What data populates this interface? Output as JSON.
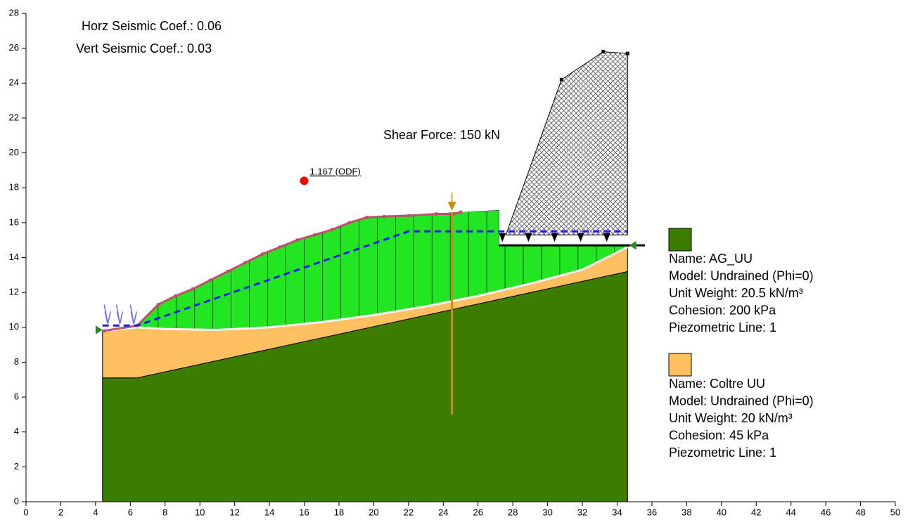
{
  "chart_data": {
    "type": "slope",
    "annotations": [
      "Horz Seismic Coef.: 0.06",
      "Vert Seismic Coef.: 0.03",
      "Shear Force: 150 kN",
      "1.167 (ODF)"
    ],
    "xlim": [
      0,
      50
    ],
    "ylim": [
      0,
      28
    ],
    "xticks": [
      0,
      2,
      4,
      6,
      8,
      10,
      12,
      14,
      16,
      18,
      20,
      22,
      24,
      26,
      28,
      30,
      32,
      34,
      36,
      38,
      40,
      42,
      44,
      46,
      48,
      50
    ],
    "yticks": [
      0,
      2,
      4,
      6,
      8,
      10,
      12,
      14,
      16,
      18,
      20,
      22,
      24,
      26,
      28
    ],
    "regions": [
      {
        "color": "#3c7d00",
        "x": [
          4.4,
          4.4,
          6.4,
          34.6,
          34.6
        ],
        "y": [
          0,
          7.1,
          7.1,
          13.2,
          0
        ]
      },
      {
        "color": "#fdbf5f",
        "x": [
          4.4,
          4.4,
          6.4,
          7.6,
          19.6,
          27.2,
          27.2,
          34.6,
          34.6,
          6.4
        ],
        "y": [
          7.1,
          9.8,
          10.1,
          11.3,
          16.3,
          16.7,
          14.7,
          14.7,
          13.2,
          7.1
        ]
      }
    ],
    "ground": {
      "x": [
        4.5,
        6.4,
        7.6,
        8.6,
        9.6,
        10.6,
        11.6,
        12.6,
        13.6,
        14.6,
        15.6,
        16.6,
        17.6,
        18.6,
        19.6,
        20.6,
        22.0,
        23.6,
        24.6,
        25.0
      ],
      "y": [
        9.8,
        10.1,
        11.3,
        11.8,
        12.2,
        12.7,
        13.2,
        13.7,
        14.2,
        14.6,
        15.0,
        15.3,
        15.6,
        16.0,
        16.3,
        16.35,
        16.4,
        16.5,
        16.5,
        16.6
      ]
    },
    "slip_surface": {
      "x": [
        4.5,
        6.4,
        8,
        11,
        14,
        17,
        20,
        23,
        26,
        29,
        32,
        34.6
      ],
      "y": [
        9.8,
        10.0,
        9.9,
        9.85,
        10.0,
        10.3,
        10.7,
        11.2,
        11.8,
        12.5,
        13.3,
        14.6
      ]
    },
    "piezometric_line": {
      "color": "#1a1aff",
      "x": [
        4.4,
        6.4,
        22,
        34.6
      ],
      "y": [
        10.1,
        10.1,
        15.5,
        15.5
      ]
    },
    "surcharge": {
      "x": [
        27.6,
        30.8,
        33.2,
        34.6,
        34.6
      ],
      "y": [
        15.3,
        24.2,
        25.8,
        25.7,
        15.3
      ]
    },
    "reinforcement": {
      "color": "#c8900a",
      "x": 24.5,
      "y": [
        5,
        16.6
      ]
    },
    "critical_center": {
      "color": "#ff0000",
      "x": 16,
      "y": 18.4
    },
    "legend": [
      {
        "color": "#3c7d00",
        "lines": [
          "Name: AG_UU",
          "Model: Undrained (Phi=0)",
          "Unit Weight: 20.5 kN/m³",
          "Cohesion: 200 kPa",
          "Piezometric Line: 1"
        ]
      },
      {
        "color": "#fdbf5f",
        "lines": [
          "Name: Coltre  UU",
          "Model: Undrained (Phi=0)",
          "Unit Weight: 20 kN/m³",
          "Cohesion: 45 kPa",
          "Piezometric Line: 1"
        ]
      }
    ]
  }
}
